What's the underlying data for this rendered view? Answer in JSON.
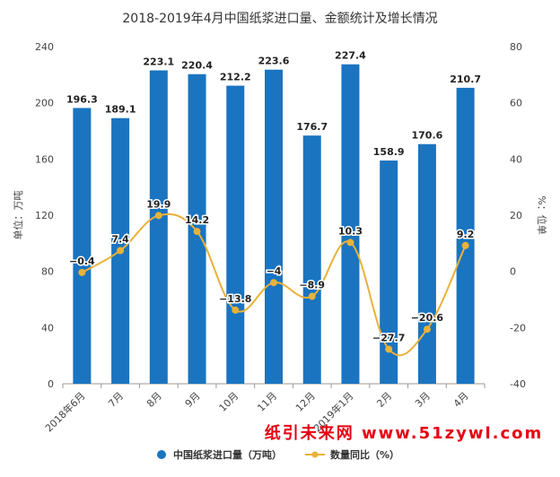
{
  "chart_data": {
    "type": "bar+line",
    "title": "2018-2019年4月中国纸浆进口量、金额统计及增长情况",
    "categories": [
      "2018年6月",
      "7月",
      "8月",
      "9月",
      "10月",
      "11月",
      "12月",
      "2019年1月",
      "2月",
      "3月",
      "4月"
    ],
    "series": [
      {
        "name": "中国纸浆进口量（万吨）",
        "type": "bar",
        "axis": "left",
        "color": "#1a74c0",
        "values": [
          196.3,
          189.1,
          223.1,
          220.4,
          212.2,
          223.6,
          176.7,
          227.4,
          158.9,
          170.6,
          210.7
        ],
        "labels": [
          "196.3",
          "189.1",
          "223.1",
          "220.4",
          "212.2",
          "223.6",
          "176.7",
          "227.4",
          "158.9",
          "170.6",
          "210.7"
        ]
      },
      {
        "name": "数量同比（%）",
        "type": "line",
        "axis": "right",
        "color": "#e8b23a",
        "values": [
          -0.4,
          7.4,
          19.9,
          14.2,
          -13.8,
          -4,
          -8.9,
          10.3,
          -27.7,
          -20.6,
          9.2
        ],
        "labels": [
          "−0.4",
          "7.4",
          "19.9",
          "14.2",
          "−13.8",
          "−4",
          "−8.9",
          "10.3",
          "−27.7",
          "−20.6",
          "9.2"
        ]
      }
    ],
    "ylabel_left": "单位：万吨",
    "ylabel_right": "%：位单",
    "ylim_left": [
      0,
      240
    ],
    "ylim_right": [
      -40,
      80
    ],
    "yticks_left": [
      "0",
      "40",
      "80",
      "120",
      "160",
      "200",
      "240"
    ],
    "yticks_right": [
      "-40",
      "-20",
      "0",
      "20",
      "40",
      "60",
      "80"
    ],
    "grid": false,
    "legend_position": "bottom"
  },
  "watermark": "纸引未来网  www.51zywl.com"
}
